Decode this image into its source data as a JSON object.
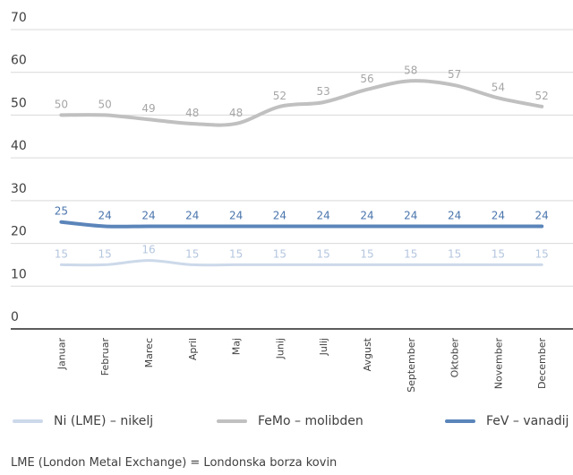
{
  "chart_data": {
    "type": "line",
    "categories": [
      "Januar",
      "Februar",
      "Marec",
      "April",
      "Maj",
      "Junij",
      "Julij",
      "Avgust",
      "September",
      "Oktober",
      "November",
      "December"
    ],
    "series": [
      {
        "name": "Ni (LME) – nikelj",
        "color": "#ccd9ea",
        "label_color": "#b4c6de",
        "values": [
          15,
          15,
          16,
          15,
          15,
          15,
          15,
          15,
          15,
          15,
          15,
          15
        ]
      },
      {
        "name": "FeMo – molibden",
        "color": "#c0c0c0",
        "label_color": "#a6a6a6",
        "values": [
          50,
          50,
          49,
          48,
          48,
          52,
          53,
          56,
          58,
          57,
          54,
          52
        ]
      },
      {
        "name": "FeV – vanadij",
        "color": "#5b85ba",
        "label_color": "#4a75ac",
        "values": [
          25,
          24,
          24,
          24,
          24,
          24,
          24,
          24,
          24,
          24,
          24,
          24
        ]
      }
    ],
    "yticks": [
      "0",
      "10",
      "20",
      "30",
      "40",
      "50",
      "60",
      "70"
    ],
    "ylim": [
      0,
      70
    ],
    "grid": true,
    "legend_position": "bottom"
  },
  "footnote": "LME (London Metal Exchange) = Londonska borza kovin"
}
